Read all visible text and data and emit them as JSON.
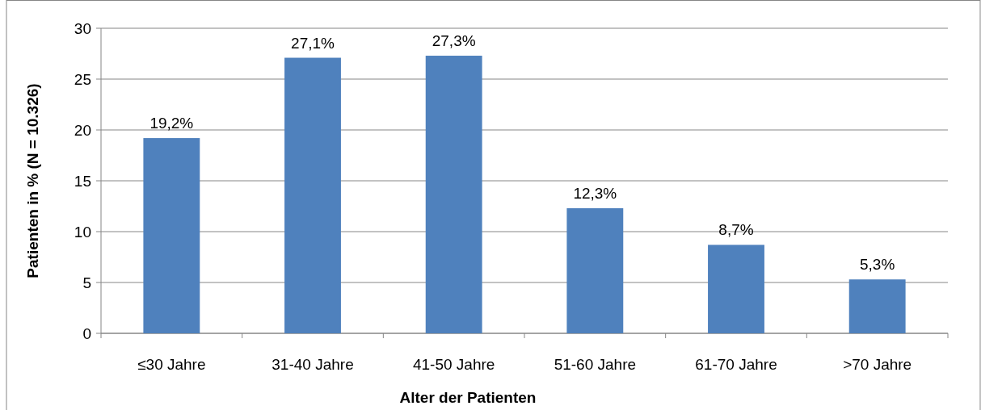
{
  "chart_data": {
    "type": "bar",
    "xlabel": "Alter der Patienten",
    "ylabel": "Patienten in % (N = 10.326)",
    "categories": [
      "≤30 Jahre",
      "31-40 Jahre",
      "41-50 Jahre",
      "51-60 Jahre",
      "61-70 Jahre",
      ">70 Jahre"
    ],
    "values": [
      19.2,
      27.1,
      27.3,
      12.3,
      8.7,
      5.3
    ],
    "value_labels": [
      "19,2%",
      "27,1%",
      "27,3%",
      "12,3%",
      "8,7%",
      "5,3%"
    ],
    "color": "#4f81bd",
    "ylim": [
      0,
      30
    ],
    "yticks": [
      0,
      5,
      10,
      15,
      20,
      25,
      30
    ],
    "grid": "y"
  }
}
